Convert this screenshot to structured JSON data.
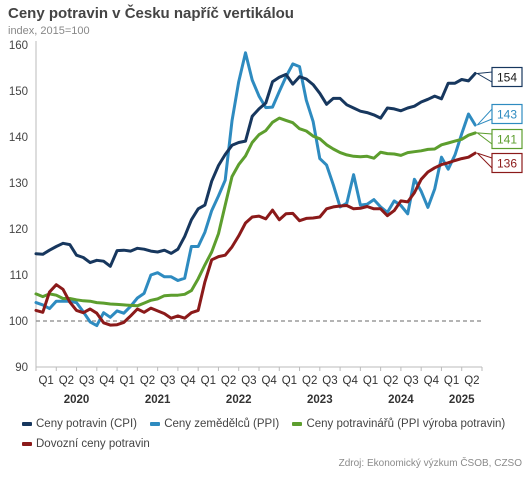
{
  "chart_data": {
    "type": "line",
    "title": "Ceny potravin v Česku napříč vertikálou",
    "subtitle": "index, 2015=100",
    "ylim": [
      90,
      160
    ],
    "yticks": [
      90,
      100,
      110,
      120,
      130,
      140,
      150,
      160
    ],
    "quarter_labels": [
      "Q1",
      "Q2",
      "Q3",
      "Q4",
      "Q1",
      "Q2",
      "Q3",
      "Q4",
      "Q1",
      "Q2",
      "Q3",
      "Q4",
      "Q1",
      "Q2",
      "Q3",
      "Q4",
      "Q1",
      "Q2",
      "Q3",
      "Q4",
      "Q1",
      "Q2"
    ],
    "year_labels": [
      "2020",
      "2021",
      "2022",
      "2023",
      "2024",
      "2025"
    ],
    "reference_line": 100,
    "grid": false,
    "legend_position": "bottom",
    "x_start": "2020-01",
    "series": [
      {
        "name": "Ceny potravin (CPI)",
        "color": "#17375e",
        "end_label": "154",
        "values": [
          114.6,
          114.5,
          115.4,
          116.2,
          116.9,
          116.6,
          114.3,
          113.8,
          112.7,
          113.2,
          113.0,
          111.9,
          115.3,
          115.4,
          115.2,
          115.8,
          115.6,
          115.2,
          115.0,
          115.4,
          114.7,
          115.6,
          118.4,
          122.0,
          124.4,
          125.2,
          130.4,
          133.8,
          136.2,
          138.2,
          138.8,
          139.1,
          144.5,
          146.1,
          147.4,
          152.0,
          153.0,
          153.6,
          151.5,
          153.1,
          152.6,
          151.4,
          149.5,
          147.1,
          148.4,
          148.4,
          147.0,
          146.3,
          145.6,
          145.3,
          144.8,
          144.1,
          146.3,
          146.1,
          145.7,
          146.3,
          146.7,
          147.6,
          148.2,
          148.9,
          148.3,
          151.7,
          151.7,
          152.5,
          152.2,
          153.8
        ]
      },
      {
        "name": "Ceny zemědělců (PPI)",
        "color": "#2e8bc0",
        "end_label": "143",
        "values": [
          104.0,
          103.5,
          102.7,
          104.3,
          104.3,
          104.3,
          104.0,
          102.0,
          99.8,
          99.0,
          101.8,
          100.8,
          102.2,
          101.7,
          103.2,
          105.0,
          106.0,
          110.0,
          110.5,
          109.6,
          109.6,
          108.8,
          109.3,
          116.2,
          116.2,
          119.3,
          124.0,
          127.2,
          130.6,
          143.5,
          152.0,
          158.3,
          152.4,
          148.9,
          146.4,
          146.5,
          149.9,
          153.1,
          155.9,
          155.3,
          148.0,
          143.4,
          135.3,
          133.9,
          129.6,
          124.8,
          125.6,
          131.8,
          125.2,
          125.4,
          126.4,
          124.8,
          123.6,
          126.1,
          125.1,
          123.3,
          130.8,
          128.2,
          124.7,
          128.7,
          135.6,
          133.0,
          136.1,
          140.7,
          145.0,
          142.6
        ]
      },
      {
        "name": "Ceny potravinářů (PPI výroba potravin)",
        "color": "#5d9e2e",
        "end_label": "141",
        "values": [
          105.9,
          105.3,
          105.9,
          105.6,
          104.9,
          104.9,
          104.6,
          104.4,
          104.3,
          104.0,
          103.9,
          103.7,
          103.6,
          103.5,
          103.4,
          103.3,
          103.9,
          104.5,
          104.8,
          105.5,
          105.6,
          105.6,
          105.8,
          106.6,
          109.2,
          112.2,
          115.0,
          119.0,
          125.2,
          131.4,
          134.0,
          135.9,
          138.8,
          140.5,
          141.4,
          143.2,
          144.1,
          143.6,
          143.1,
          141.8,
          141.3,
          140.2,
          139.6,
          138.3,
          137.4,
          136.6,
          136.1,
          135.8,
          135.7,
          135.8,
          135.4,
          136.7,
          136.4,
          136.3,
          136.0,
          136.6,
          136.8,
          137.0,
          137.3,
          137.4,
          138.3,
          138.7,
          139.1,
          139.5,
          140.4,
          140.9
        ]
      },
      {
        "name": "Dovozní ceny potravin",
        "color": "#8b1a1a",
        "end_label": "136",
        "values": [
          102.3,
          101.9,
          106.3,
          107.9,
          106.9,
          104.1,
          102.3,
          101.8,
          102.6,
          101.7,
          99.6,
          99.1,
          99.2,
          99.7,
          101.1,
          102.6,
          101.9,
          102.8,
          102.2,
          101.6,
          100.6,
          101.1,
          100.6,
          101.8,
          102.3,
          108.5,
          113.3,
          114.0,
          114.3,
          116.1,
          118.5,
          121.3,
          122.6,
          122.8,
          122.2,
          124.1,
          122.0,
          123.3,
          123.4,
          121.8,
          122.3,
          122.4,
          122.6,
          124.4,
          124.8,
          125.0,
          125.1,
          124.4,
          124.5,
          124.9,
          124.4,
          124.4,
          122.9,
          124.0,
          126.1,
          125.9,
          127.9,
          130.8,
          132.4,
          133.3,
          134.0,
          134.4,
          134.9,
          135.3,
          135.6,
          136.5
        ]
      }
    ]
  },
  "legend": [
    {
      "label": "Ceny potravin (CPI)",
      "color": "#17375e"
    },
    {
      "label": "Ceny zemědělců (PPI)",
      "color": "#2e8bc0"
    },
    {
      "label": "Ceny potravinářů (PPI výroba potravin)",
      "color": "#5d9e2e"
    },
    {
      "label": "Dovozní ceny potravin",
      "color": "#8b1a1a"
    }
  ],
  "source": "Zdroj: Ekonomický výzkum ČSOB, CZSO"
}
